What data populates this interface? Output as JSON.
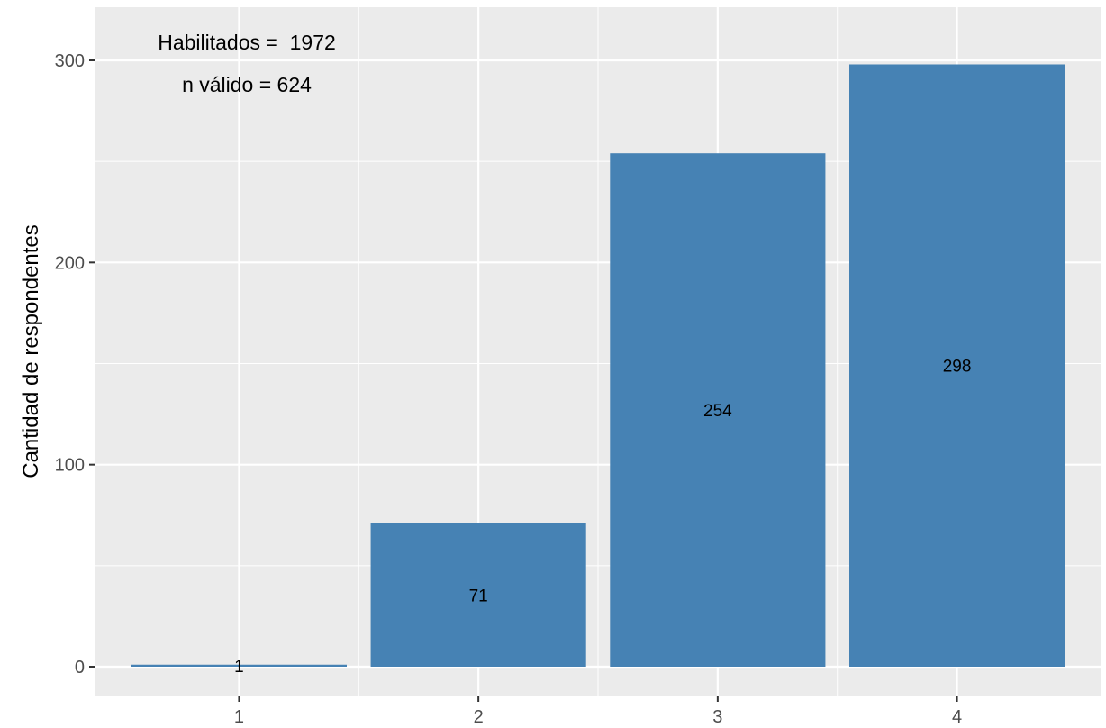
{
  "chart_data": {
    "type": "bar",
    "categories": [
      "1",
      "2",
      "3",
      "4"
    ],
    "values": [
      1,
      71,
      254,
      298
    ],
    "data_labels": [
      "1",
      "71",
      "254",
      "298"
    ],
    "title": "",
    "xlabel": "",
    "ylabel": "Cantidad de respondentes",
    "ylim": [
      0,
      313
    ],
    "yticks": [
      0,
      100,
      200,
      300
    ],
    "ytick_labels": [
      "0",
      "100",
      "200",
      "300"
    ],
    "grid": true,
    "legend": "none",
    "annotations": [
      "Habilitados =  1972",
      "n válido = 624"
    ],
    "colors": {
      "bar": "#4682b4",
      "panel_background": "#ebebeb",
      "gridline": "#ffffff",
      "tick_text": "#4d4d4d",
      "text": "#000000"
    }
  }
}
